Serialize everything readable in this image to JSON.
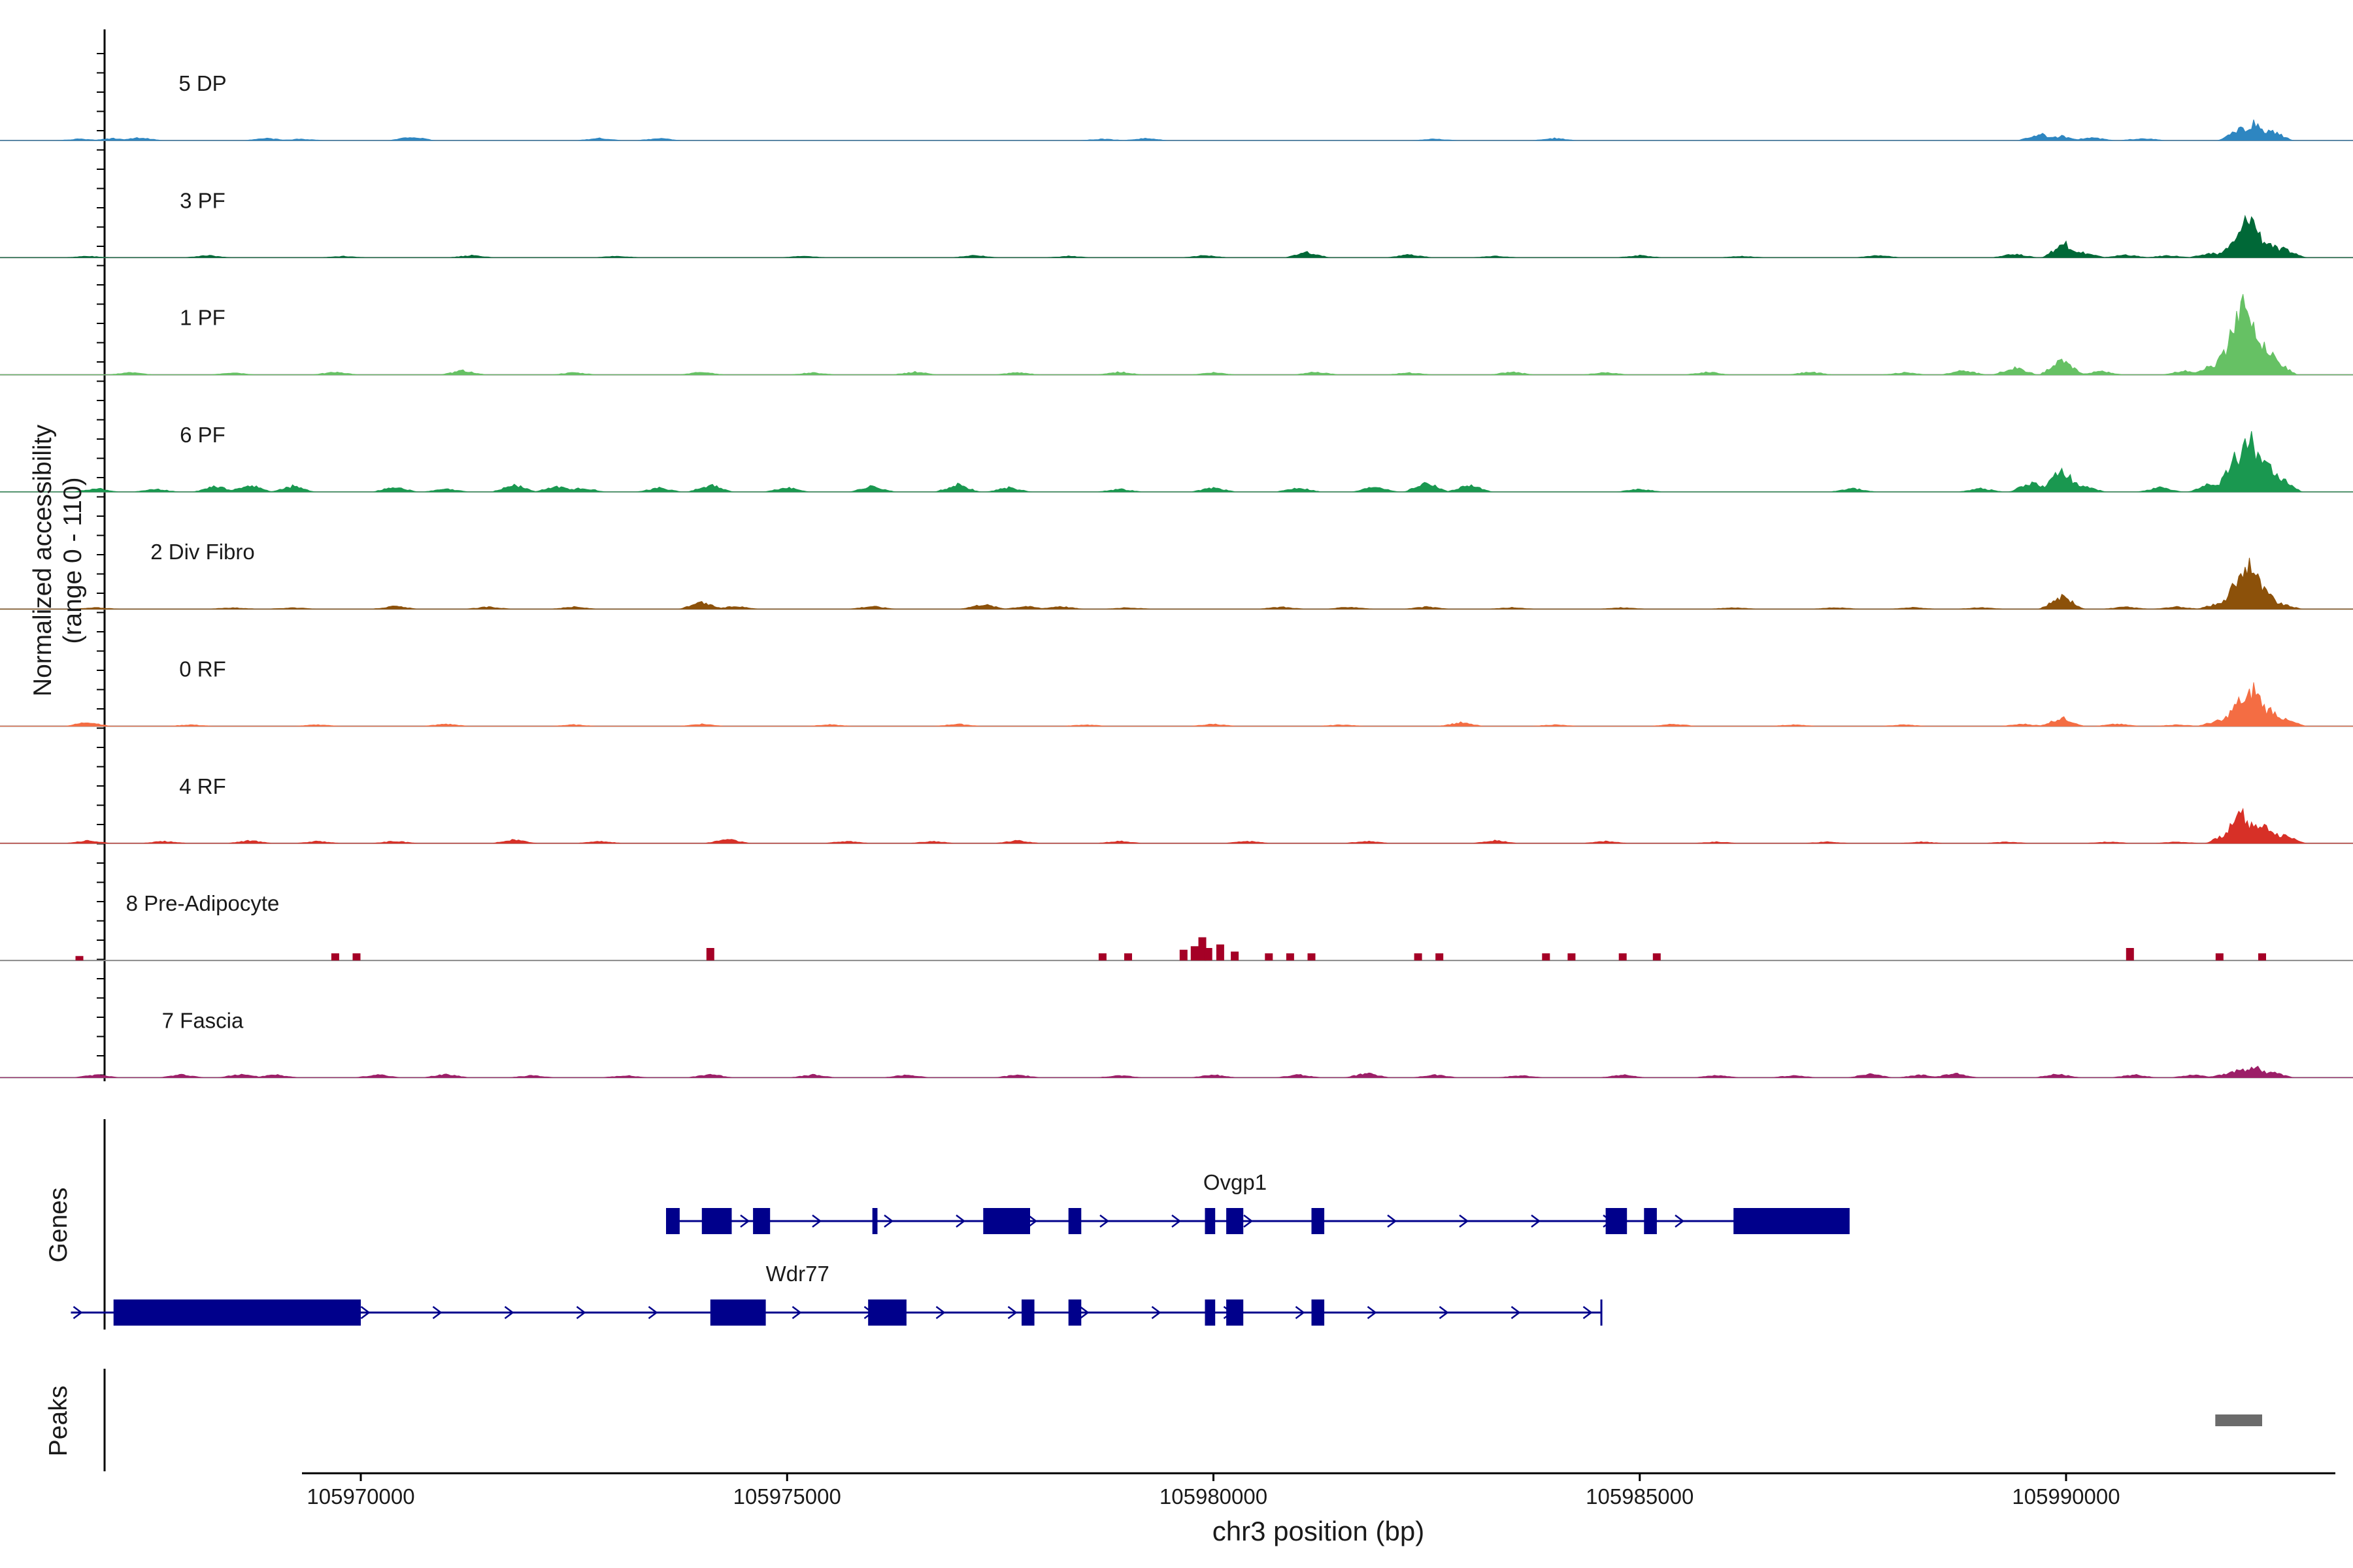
{
  "chart_data": {
    "type": "area",
    "title": "",
    "chromosome": "chr3",
    "xlabel": "chr3 position (bp)",
    "ylabel": "Normalized accessibility",
    "ylabel_range": "(range 0 - 110)",
    "ylim": [
      0,
      110
    ],
    "xlim": [
      105965400,
      105993800
    ],
    "x_ticks": [
      105970000,
      105975000,
      105980000,
      105985000,
      105990000
    ],
    "x_tick_labels": [
      "105970000",
      "105975000",
      "105980000",
      "105985000",
      "105990000"
    ],
    "grid": false,
    "legend": "none",
    "tracks": [
      {
        "name": "5 DP",
        "color": "#2e86c1",
        "sparse": false,
        "points": [
          [
            105966700,
            2
          ],
          [
            105967100,
            3
          ],
          [
            105967400,
            4
          ],
          [
            105968900,
            3
          ],
          [
            105969300,
            2
          ],
          [
            105970600,
            5
          ],
          [
            105972800,
            3
          ],
          [
            105973500,
            3
          ],
          [
            105978700,
            2
          ],
          [
            105979200,
            3
          ],
          [
            105982600,
            2
          ],
          [
            105984000,
            3
          ],
          [
            105989700,
            9
          ],
          [
            105989950,
            6
          ],
          [
            105990300,
            4
          ],
          [
            105990900,
            3
          ],
          [
            105992050,
            16
          ],
          [
            105992200,
            24
          ],
          [
            105992400,
            14
          ]
        ]
      },
      {
        "name": "3 PF",
        "color": "#006837",
        "sparse": false,
        "points": [
          [
            105966800,
            2
          ],
          [
            105968200,
            3
          ],
          [
            105969800,
            2
          ],
          [
            105971300,
            3
          ],
          [
            105973000,
            2
          ],
          [
            105975200,
            2
          ],
          [
            105977200,
            3
          ],
          [
            105978300,
            2
          ],
          [
            105979900,
            3
          ],
          [
            105981100,
            7
          ],
          [
            105982300,
            4
          ],
          [
            105983300,
            2
          ],
          [
            105985000,
            3
          ],
          [
            105986200,
            2
          ],
          [
            105987800,
            3
          ],
          [
            105989400,
            5
          ],
          [
            105989980,
            20
          ],
          [
            105990200,
            7
          ],
          [
            105990700,
            4
          ],
          [
            105991200,
            3
          ],
          [
            105991700,
            6
          ],
          [
            105992000,
            24
          ],
          [
            105992150,
            62
          ],
          [
            105992350,
            24
          ],
          [
            105992550,
            12
          ]
        ]
      },
      {
        "name": "1 PF",
        "color": "#66c164",
        "sparse": false,
        "points": [
          [
            105967300,
            3
          ],
          [
            105968500,
            3
          ],
          [
            105969700,
            4
          ],
          [
            105971200,
            6
          ],
          [
            105972500,
            3
          ],
          [
            105974000,
            4
          ],
          [
            105975300,
            3
          ],
          [
            105976500,
            4
          ],
          [
            105977700,
            3
          ],
          [
            105978900,
            4
          ],
          [
            105980000,
            3
          ],
          [
            105981200,
            4
          ],
          [
            105982300,
            3
          ],
          [
            105983500,
            4
          ],
          [
            105984600,
            3
          ],
          [
            105985800,
            4
          ],
          [
            105987000,
            4
          ],
          [
            105988100,
            3
          ],
          [
            105988800,
            6
          ],
          [
            105989400,
            10
          ],
          [
            105989950,
            20
          ],
          [
            105990400,
            5
          ],
          [
            105991400,
            6
          ],
          [
            105991700,
            12
          ],
          [
            105991900,
            36
          ],
          [
            105992050,
            110
          ],
          [
            105992200,
            72
          ],
          [
            105992350,
            38
          ],
          [
            105992450,
            20
          ]
        ]
      },
      {
        "name": "6 PF",
        "color": "#1a9850",
        "sparse": false,
        "points": [
          [
            105966900,
            5
          ],
          [
            105967600,
            4
          ],
          [
            105968300,
            8
          ],
          [
            105968700,
            10
          ],
          [
            105969200,
            8
          ],
          [
            105970400,
            7
          ],
          [
            105971000,
            4
          ],
          [
            105971800,
            10
          ],
          [
            105972300,
            8
          ],
          [
            105972600,
            6
          ],
          [
            105973500,
            6
          ],
          [
            105974100,
            10
          ],
          [
            105975000,
            6
          ],
          [
            105976000,
            8
          ],
          [
            105977000,
            10
          ],
          [
            105977600,
            6
          ],
          [
            105978900,
            4
          ],
          [
            105980000,
            6
          ],
          [
            105981000,
            6
          ],
          [
            105981900,
            8
          ],
          [
            105982500,
            14
          ],
          [
            105983000,
            10
          ],
          [
            105985000,
            4
          ],
          [
            105987500,
            5
          ],
          [
            105989000,
            5
          ],
          [
            105989600,
            14
          ],
          [
            105989950,
            32
          ],
          [
            105990200,
            8
          ],
          [
            105991100,
            6
          ],
          [
            105991700,
            12
          ],
          [
            105992000,
            50
          ],
          [
            105992150,
            82
          ],
          [
            105992350,
            40
          ],
          [
            105992500,
            22
          ]
        ]
      },
      {
        "name": "2 Div Fibro",
        "color": "#8c510a",
        "sparse": false,
        "points": [
          [
            105966900,
            2
          ],
          [
            105968500,
            2
          ],
          [
            105969200,
            2
          ],
          [
            105970400,
            4
          ],
          [
            105971500,
            3
          ],
          [
            105972500,
            3
          ],
          [
            105974000,
            9
          ],
          [
            105974400,
            4
          ],
          [
            105976000,
            4
          ],
          [
            105977300,
            7
          ],
          [
            105977800,
            4
          ],
          [
            105978200,
            4
          ],
          [
            105979000,
            2
          ],
          [
            105980800,
            3
          ],
          [
            105981600,
            3
          ],
          [
            105982500,
            3
          ],
          [
            105983500,
            2
          ],
          [
            105984800,
            2
          ],
          [
            105986100,
            2
          ],
          [
            105987300,
            2
          ],
          [
            105988200,
            2
          ],
          [
            105989000,
            2
          ],
          [
            105989950,
            18
          ],
          [
            105990700,
            3
          ],
          [
            105991300,
            3
          ],
          [
            105991800,
            8
          ],
          [
            105992050,
            48
          ],
          [
            105992150,
            72
          ],
          [
            105992300,
            30
          ],
          [
            105992500,
            8
          ]
        ]
      },
      {
        "name": "0 RF",
        "color": "#f46d43",
        "sparse": false,
        "points": [
          [
            105966800,
            6
          ],
          [
            105968000,
            2
          ],
          [
            105969500,
            2
          ],
          [
            105971000,
            3
          ],
          [
            105972500,
            2
          ],
          [
            105974000,
            3
          ],
          [
            105975500,
            2
          ],
          [
            105977000,
            3
          ],
          [
            105978500,
            2
          ],
          [
            105980000,
            3
          ],
          [
            105981500,
            2
          ],
          [
            105982900,
            5
          ],
          [
            105984000,
            2
          ],
          [
            105985400,
            3
          ],
          [
            105986800,
            2
          ],
          [
            105988100,
            2
          ],
          [
            105989500,
            3
          ],
          [
            105989950,
            12
          ],
          [
            105990600,
            3
          ],
          [
            105991300,
            2
          ],
          [
            105991800,
            8
          ],
          [
            105992050,
            38
          ],
          [
            105992200,
            54
          ],
          [
            105992400,
            24
          ],
          [
            105992550,
            10
          ]
        ]
      },
      {
        "name": "4 RF",
        "color": "#d73027",
        "sparse": false,
        "points": [
          [
            105966800,
            4
          ],
          [
            105967700,
            3
          ],
          [
            105968700,
            4
          ],
          [
            105969500,
            3
          ],
          [
            105970400,
            3
          ],
          [
            105971800,
            5
          ],
          [
            105972800,
            3
          ],
          [
            105974300,
            6
          ],
          [
            105975700,
            3
          ],
          [
            105976700,
            3
          ],
          [
            105977700,
            4
          ],
          [
            105978900,
            3
          ],
          [
            105980400,
            3
          ],
          [
            105981800,
            3
          ],
          [
            105983300,
            4
          ],
          [
            105984600,
            3
          ],
          [
            105985900,
            2
          ],
          [
            105987200,
            2
          ],
          [
            105988300,
            2
          ],
          [
            105989300,
            2
          ],
          [
            105990500,
            2
          ],
          [
            105991300,
            2
          ],
          [
            105991900,
            14
          ],
          [
            105992050,
            46
          ],
          [
            105992200,
            30
          ],
          [
            105992350,
            24
          ],
          [
            105992550,
            12
          ]
        ]
      },
      {
        "name": "8 Pre-Adipocyte",
        "color": "#a50026",
        "sparse": true,
        "points": [
          [
            105966700,
            5
          ],
          [
            105969700,
            8
          ],
          [
            105969950,
            8
          ],
          [
            105974100,
            14
          ],
          [
            105978700,
            8
          ],
          [
            105979000,
            8
          ],
          [
            105979650,
            12
          ],
          [
            105979780,
            16
          ],
          [
            105979870,
            26
          ],
          [
            105979940,
            14
          ],
          [
            105980080,
            18
          ],
          [
            105980250,
            10
          ],
          [
            105980650,
            8
          ],
          [
            105980900,
            8
          ],
          [
            105981150,
            8
          ],
          [
            105982400,
            8
          ],
          [
            105982650,
            8
          ],
          [
            105983900,
            8
          ],
          [
            105984200,
            8
          ],
          [
            105984800,
            8
          ],
          [
            105985200,
            8
          ],
          [
            105990750,
            14
          ],
          [
            105991800,
            8
          ],
          [
            105992300,
            8
          ]
        ]
      },
      {
        "name": "7 Fascia",
        "color": "#9c1f68",
        "sparse": false,
        "points": [
          [
            105966900,
            4
          ],
          [
            105967900,
            4
          ],
          [
            105968600,
            5
          ],
          [
            105969000,
            4
          ],
          [
            105970200,
            4
          ],
          [
            105971000,
            5
          ],
          [
            105972000,
            3
          ],
          [
            105973100,
            3
          ],
          [
            105974100,
            5
          ],
          [
            105975300,
            4
          ],
          [
            105976400,
            4
          ],
          [
            105977700,
            4
          ],
          [
            105978900,
            3
          ],
          [
            105980000,
            4
          ],
          [
            105981000,
            4
          ],
          [
            105981800,
            6
          ],
          [
            105982600,
            4
          ],
          [
            105983600,
            3
          ],
          [
            105984800,
            4
          ],
          [
            105985900,
            3
          ],
          [
            105986800,
            3
          ],
          [
            105987700,
            5
          ],
          [
            105988300,
            4
          ],
          [
            105988700,
            6
          ],
          [
            105989900,
            5
          ],
          [
            105990800,
            4
          ],
          [
            105991500,
            4
          ],
          [
            105991900,
            6
          ],
          [
            105992050,
            12
          ],
          [
            105992200,
            16
          ],
          [
            105992400,
            8
          ]
        ]
      }
    ],
    "genes_label": "Genes",
    "genes": [
      {
        "name": "Ovgp1",
        "strand": "+",
        "start": 105973580,
        "end": 105987450,
        "exons": [
          [
            105973580,
            105973740
          ],
          [
            105974000,
            105974350
          ],
          [
            105974600,
            105974800
          ],
          [
            105976000,
            105976060
          ],
          [
            105977300,
            105977850
          ],
          [
            105978300,
            105978450
          ],
          [
            105979900,
            105980020
          ],
          [
            105980150,
            105980350
          ],
          [
            105981150,
            105981300
          ],
          [
            105984600,
            105984850
          ],
          [
            105985050,
            105985200
          ],
          [
            105986100,
            105987450
          ]
        ]
      },
      {
        "name": "Wdr77",
        "strand": "+",
        "start": 105966600,
        "end": 105984550,
        "exons": [
          [
            105967100,
            105970000
          ],
          [
            105974100,
            105974750
          ],
          [
            105975950,
            105976400
          ],
          [
            105977750,
            105977900
          ],
          [
            105978300,
            105978450
          ],
          [
            105979900,
            105980020
          ],
          [
            105980150,
            105980350
          ],
          [
            105981150,
            105981300
          ]
        ]
      }
    ],
    "peaks_label": "Peaks",
    "peaks": [
      [
        105991750,
        105992300
      ]
    ]
  }
}
